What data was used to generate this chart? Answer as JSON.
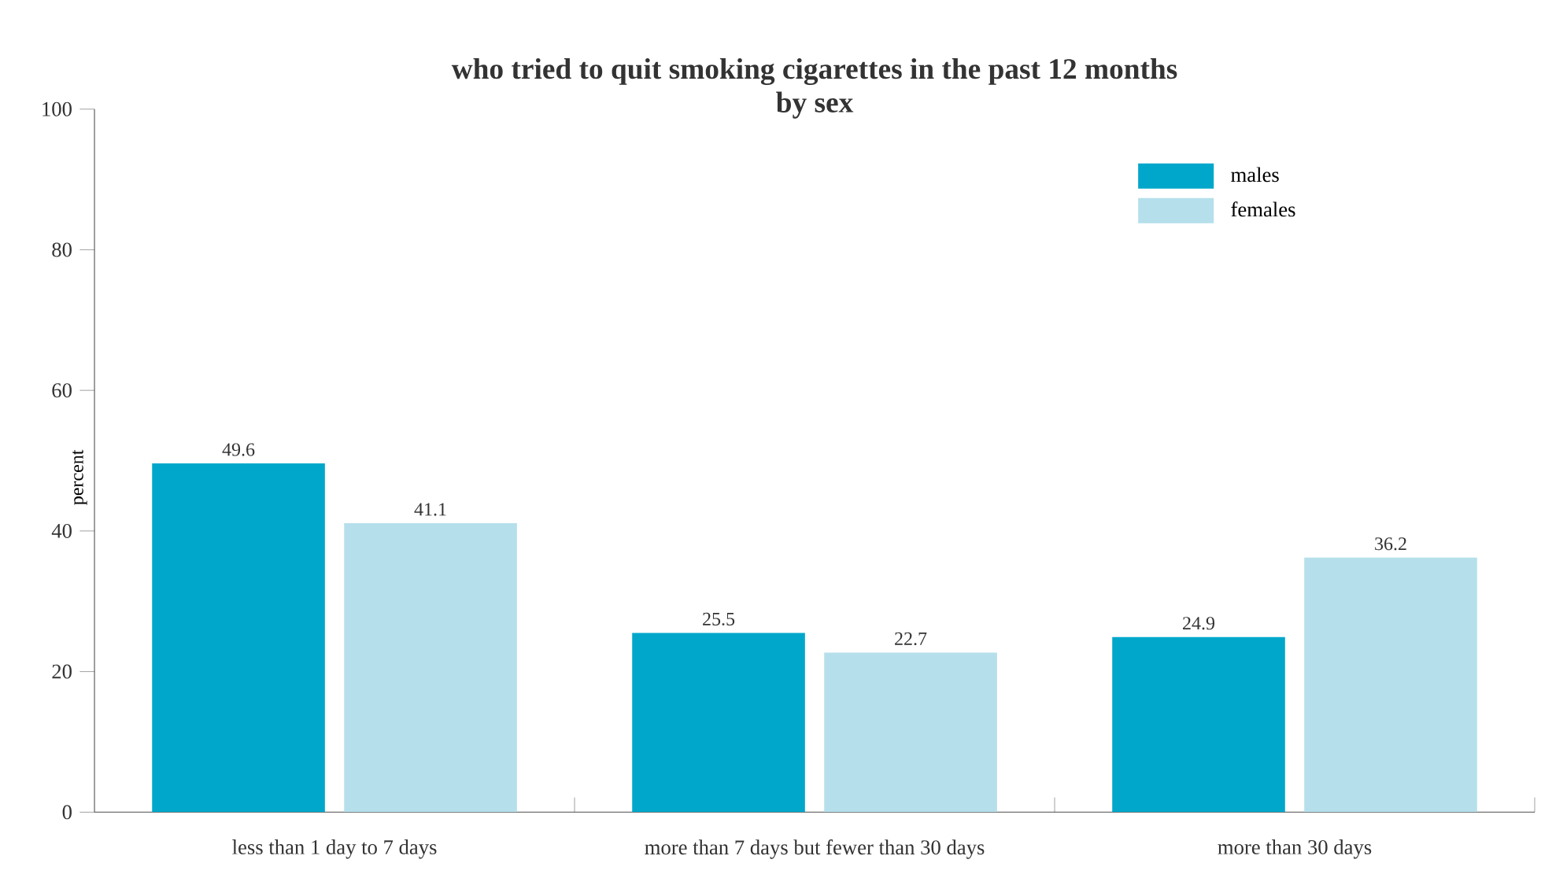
{
  "chart_data": {
    "type": "bar",
    "title": "who tried to quit smoking cigarettes in the past 12 months",
    "subtitle": "by sex",
    "ylabel": "percent",
    "categories": [
      "less than 1 day to 7 days",
      "more than 7 days but fewer than 30 days",
      "more than 30 days"
    ],
    "series": [
      {
        "name": "males",
        "color": "#00a7cb",
        "values": [
          49.6,
          25.5,
          24.9
        ]
      },
      {
        "name": "females",
        "color": "#b5dfeb",
        "values": [
          41.1,
          22.7,
          36.2
        ]
      }
    ],
    "ylim": [
      0,
      100
    ],
    "yticks": [
      0,
      20,
      40,
      60,
      80,
      100
    ],
    "data_labels": true,
    "legend": "top right",
    "grid": false
  }
}
